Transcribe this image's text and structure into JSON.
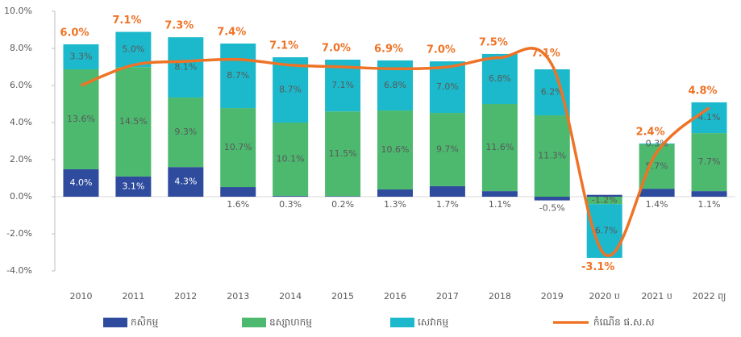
{
  "chart_data": {
    "type": "stacked_bar_line",
    "categories": [
      "2010",
      "2011",
      "2012",
      "2013",
      "2014",
      "2015",
      "2016",
      "2017",
      "2018",
      "2019",
      "2020 ប",
      "2021 ប",
      "2022 ព្យ"
    ],
    "ylim": [
      -4,
      10
    ],
    "yticks": [
      {
        "value": -4,
        "label": "-4.0%"
      },
      {
        "value": -2,
        "label": "-2.0%"
      },
      {
        "value": 0,
        "label": "0.0%"
      },
      {
        "value": 2,
        "label": "2.0%"
      },
      {
        "value": 4,
        "label": "4.0%"
      },
      {
        "value": 6,
        "label": "6.0%"
      },
      {
        "value": 8,
        "label": "8.0%"
      },
      {
        "value": 10,
        "label": "10.0%"
      }
    ],
    "series": [
      {
        "name": "កសិកម្ម",
        "color": "#2f4b9e",
        "values": [
          1.48,
          1.09,
          1.6,
          0.52,
          0.04,
          0.03,
          0.39,
          0.57,
          0.3,
          -0.2,
          0.1,
          0.43,
          0.3
        ],
        "rate_labels": [
          "4.0%",
          "3.1%",
          "4.3%",
          "1.6%",
          "0.3%",
          "0.2%",
          "1.3%",
          "1.7%",
          "1.1%",
          "-0.5%",
          "0.5%",
          "1.4%",
          "1.1%"
        ]
      },
      {
        "name": "ឧស្សាហកម្ម",
        "color": "#4cb96f",
        "values": [
          5.39,
          5.9,
          3.75,
          4.26,
          3.96,
          4.57,
          4.26,
          3.95,
          4.7,
          4.39,
          -0.4,
          2.4,
          3.13
        ],
        "rate_labels": [
          "13.6%",
          "14.5%",
          "9.3%",
          "10.7%",
          "10.1%",
          "11.5%",
          "10.6%",
          "9.7%",
          "11.6%",
          "11.3%",
          "-1.2%",
          "5.7%",
          "7.7%"
        ]
      },
      {
        "name": "សេវាកម្ម",
        "color": "#1cb9cc",
        "values": [
          1.35,
          1.9,
          3.25,
          3.48,
          3.52,
          2.79,
          2.7,
          2.78,
          2.7,
          2.48,
          -2.9,
          0.04,
          1.66
        ],
        "rate_labels": [
          "3.3%",
          "5.0%",
          "8.1%",
          "8.7%",
          "8.7%",
          "7.1%",
          "6.8%",
          "7.0%",
          "6.8%",
          "6.2%",
          "-6.7%",
          "0.3%",
          "4.1%"
        ]
      },
      {
        "name": "កំណើន ផ.ស.ស",
        "color": "#ee7326",
        "kind": "line",
        "values": [
          6.0,
          7.1,
          7.3,
          7.4,
          7.1,
          7.0,
          6.9,
          7.0,
          7.5,
          7.1,
          -3.1,
          2.4,
          4.8
        ],
        "value_labels": [
          "6.0%",
          "7.1%",
          "7.3%",
          "7.4%",
          "7.1%",
          "7.0%",
          "6.9%",
          "7.0%",
          "7.5%",
          "7.1%",
          "-3.1%",
          "2.4%",
          "4.8%"
        ]
      }
    ]
  }
}
